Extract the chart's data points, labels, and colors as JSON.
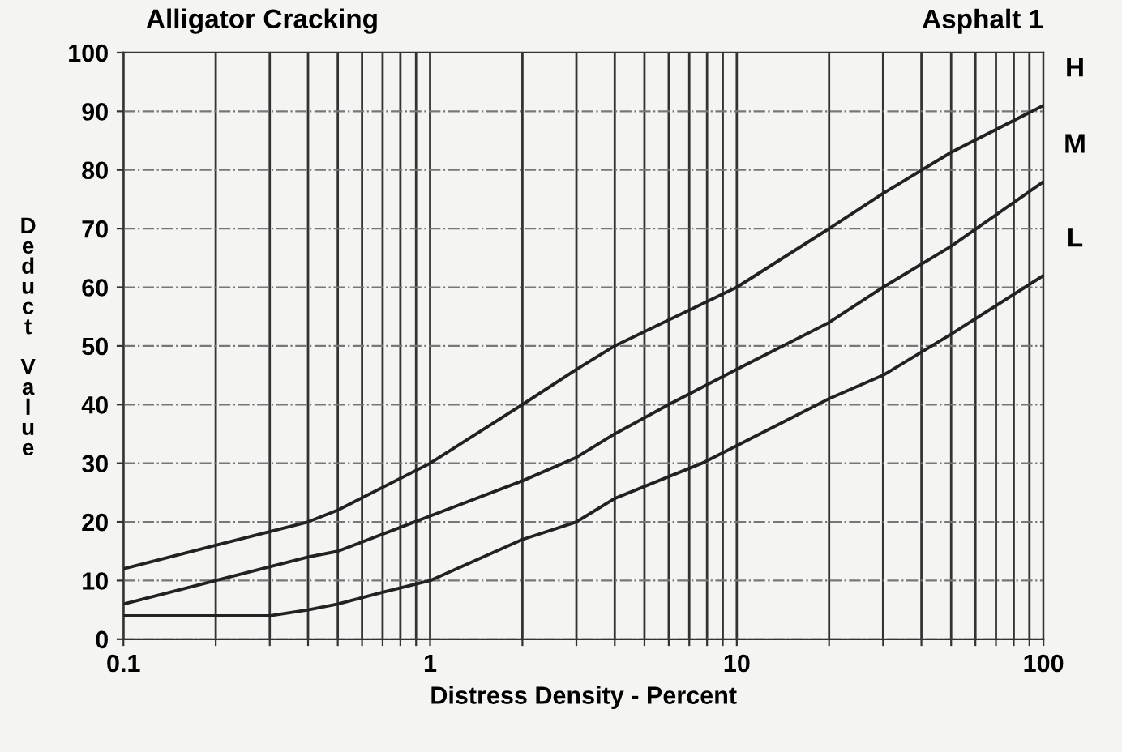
{
  "chart_data": {
    "type": "line",
    "title": "Alligator Cracking",
    "subtitle": "Asphalt 1",
    "xlabel": "Distress Density - Percent",
    "ylabel": "Deduct Value",
    "log": "x",
    "xlim": [
      0.1,
      100
    ],
    "xticks": [
      0.1,
      {
        "value": 0.2,
        "label": null
      },
      {
        "value": 0.3,
        "label": null
      },
      {
        "value": 0.4,
        "label": null
      },
      {
        "value": 0.5,
        "label": null
      },
      {
        "value": 0.6,
        "label": null
      },
      {
        "value": 0.7,
        "label": null
      },
      {
        "value": 0.8,
        "label": null
      },
      {
        "value": 0.9,
        "label": null
      },
      1,
      {
        "value": 2,
        "label": null
      },
      {
        "value": 3,
        "label": null
      },
      {
        "value": 4,
        "label": null
      },
      {
        "value": 5,
        "label": null
      },
      {
        "value": 6,
        "label": null
      },
      {
        "value": 7,
        "label": null
      },
      {
        "value": 8,
        "label": null
      },
      {
        "value": 9,
        "label": null
      },
      10,
      {
        "value": 20,
        "label": null
      },
      {
        "value": 30,
        "label": null
      },
      {
        "value": 40,
        "label": null
      },
      {
        "value": 50,
        "label": null
      },
      {
        "value": 60,
        "label": null
      },
      {
        "value": 70,
        "label": null
      },
      {
        "value": 80,
        "label": null
      },
      {
        "value": 90,
        "label": null
      },
      100
    ],
    "ylim": [
      0,
      100
    ],
    "yticks": [
      0,
      10,
      20,
      30,
      40,
      50,
      60,
      70,
      80,
      90,
      100
    ],
    "grid": true,
    "legend": false,
    "marker": "none",
    "line_style": "solid",
    "series": [
      {
        "name": "H",
        "color": "#222222",
        "x": [
          0.1,
          0.2,
          0.4,
          0.5,
          1,
          2,
          3,
          4,
          10,
          20,
          30,
          50,
          100
        ],
        "values": [
          12,
          16,
          20,
          22,
          30,
          40,
          46,
          50,
          60,
          70,
          76,
          83,
          91
        ]
      },
      {
        "name": "M",
        "color": "#222222",
        "x": [
          0.1,
          0.2,
          0.4,
          0.5,
          1,
          2,
          3,
          4,
          6,
          10,
          20,
          30,
          50,
          100
        ],
        "values": [
          6,
          10,
          14,
          15,
          21,
          27,
          31,
          35,
          40,
          46,
          54,
          60,
          67,
          78
        ]
      },
      {
        "name": "L",
        "color": "#222222",
        "x": [
          0.1,
          0.2,
          0.3,
          0.4,
          0.5,
          0.7,
          1,
          2,
          3,
          4,
          7.7,
          10,
          20,
          30,
          50,
          100
        ],
        "values": [
          4,
          4,
          4,
          5,
          6,
          8,
          10,
          17,
          20,
          24,
          30,
          33,
          41,
          45,
          52,
          62
        ]
      }
    ]
  }
}
